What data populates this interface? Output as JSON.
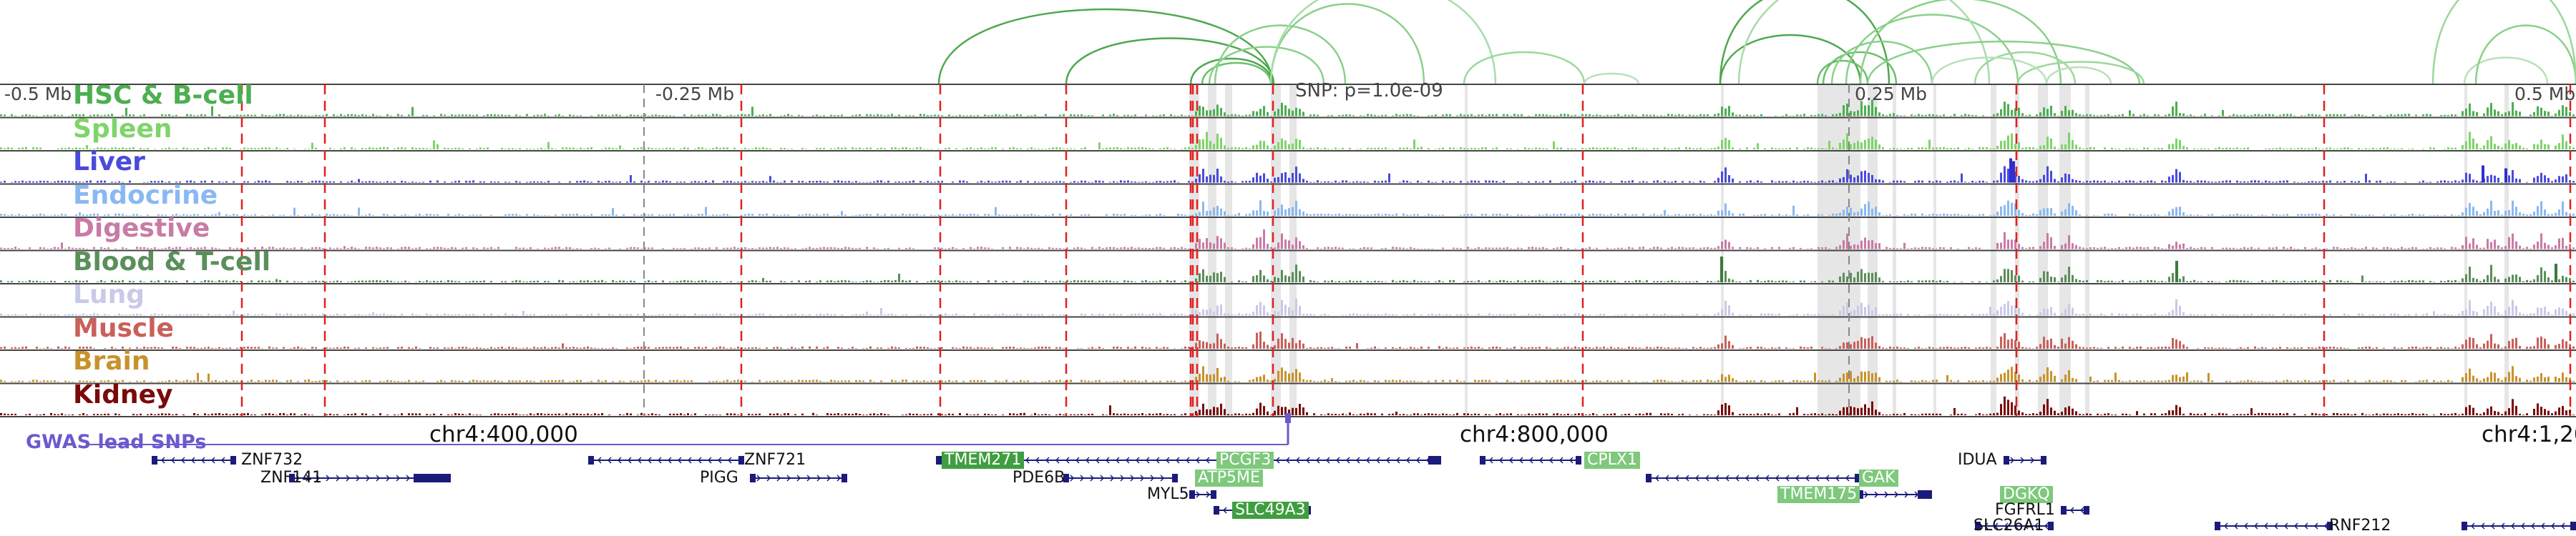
{
  "window": {
    "region": "chr4"
  },
  "scale_labels": [
    {
      "text": "-0.5 Mb",
      "pos": 0
    },
    {
      "text": "-0.25 Mb",
      "pos": 910
    },
    {
      "text": "0.25 Mb",
      "pos": 2586
    },
    {
      "text": "0.5 Mb",
      "pos": 3508
    }
  ],
  "snp_label": "SNP: p=1.0e-09",
  "coordinate_labels": [
    {
      "text": "chr4:400,000",
      "pos": 600
    },
    {
      "text": "chr4:800,000",
      "pos": 2040
    },
    {
      "text": "chr4:1,20",
      "pos": 3468
    }
  ],
  "gwas_track_label": "GWAS lead SNPs",
  "tracks": [
    {
      "name": "HSC & B-cell",
      "color": "#4caf50"
    },
    {
      "name": "Spleen",
      "color": "#7fd46a"
    },
    {
      "name": "Liver",
      "color": "#4a4adc"
    },
    {
      "name": "Endocrine",
      "color": "#8ab9f1"
    },
    {
      "name": "Digestive",
      "color": "#c97ba6"
    },
    {
      "name": "Blood & T-cell",
      "color": "#5a8f5a"
    },
    {
      "name": "Lung",
      "color": "#c9c9e8"
    },
    {
      "name": "Muscle",
      "color": "#c9605a"
    },
    {
      "name": "Brain",
      "color": "#c8922b"
    },
    {
      "name": "Kidney",
      "color": "#7a0a0a"
    }
  ],
  "genes": [
    {
      "name": "ZNF732",
      "label_pos": 337,
      "row": 0,
      "style": "plain"
    },
    {
      "name": "ZNF141",
      "label_pos": 364,
      "row": 1,
      "style": "plain"
    },
    {
      "name": "ZNF721",
      "label_pos": 1040,
      "row": 0,
      "style": "plain"
    },
    {
      "name": "PIGG",
      "label_pos": 978,
      "row": 1,
      "style": "plain"
    },
    {
      "name": "TMEM271",
      "label_pos": 1316,
      "row": 0,
      "style": "dark"
    },
    {
      "name": "PDE6B",
      "label_pos": 1415,
      "row": 1,
      "style": "plain"
    },
    {
      "name": "PCGF3",
      "label_pos": 1700,
      "row": 0,
      "style": "hl"
    },
    {
      "name": "ATP5ME",
      "label_pos": 1670,
      "row": 1,
      "style": "hl"
    },
    {
      "name": "MYL5",
      "label_pos": 1603,
      "row": 2,
      "style": "plain"
    },
    {
      "name": "SLC49A3",
      "label_pos": 1722,
      "row": 3,
      "style": "dark"
    },
    {
      "name": "CPLX1",
      "label_pos": 2214,
      "row": 0,
      "style": "hl"
    },
    {
      "name": "IDUA",
      "label_pos": 2736,
      "row": 0,
      "style": "plain"
    },
    {
      "name": "GAK",
      "label_pos": 2598,
      "row": 1,
      "style": "hl"
    },
    {
      "name": "TMEM175",
      "label_pos": 2484,
      "row": 2,
      "style": "hl"
    },
    {
      "name": "DGKQ",
      "label_pos": 2795,
      "row": 2,
      "style": "hl"
    },
    {
      "name": "FGFRL1",
      "label_pos": 2788,
      "row": 3,
      "style": "plain"
    },
    {
      "name": "SLC26A1",
      "label_pos": 2758,
      "row": 4,
      "style": "plain"
    },
    {
      "name": "RNF212",
      "label_pos": 3255,
      "row": 4,
      "style": "plain"
    }
  ]
}
